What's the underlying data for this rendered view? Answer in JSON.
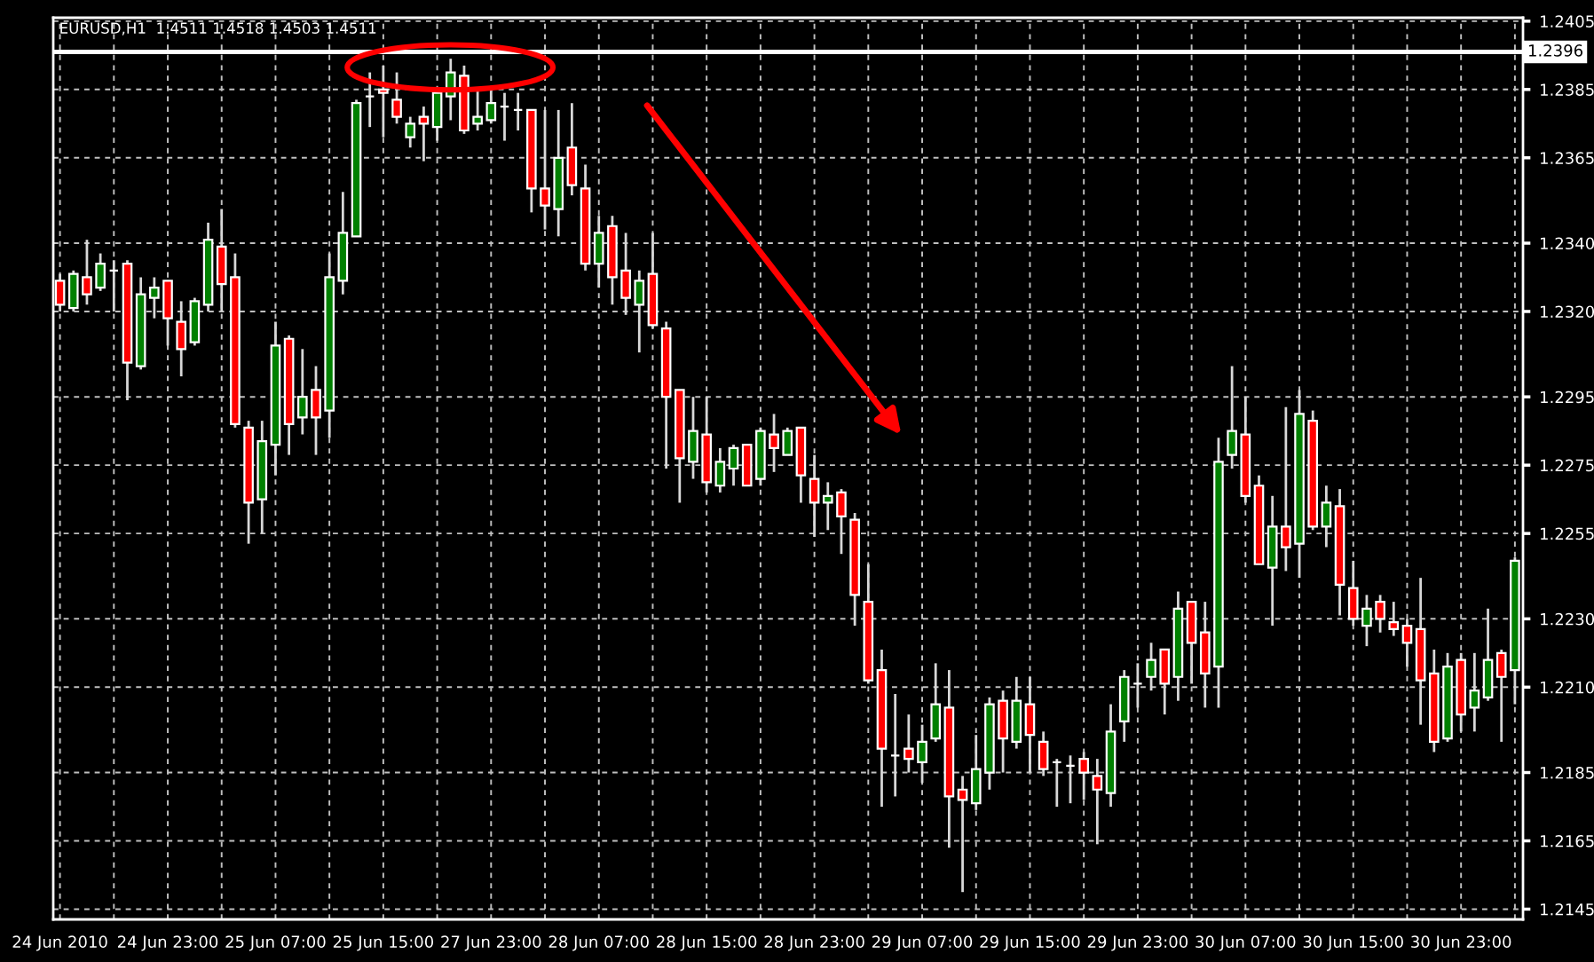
{
  "chart_data": {
    "type": "candlestick",
    "title": "EURUSD,H1  1.4511 1.4518 1.4503 1.4511",
    "categories": [
      "24 Jun 2010",
      null,
      null,
      null,
      null,
      null,
      null,
      null,
      "24 Jun 23:00",
      null,
      null,
      null,
      null,
      null,
      null,
      null,
      "25 Jun 07:00",
      null,
      null,
      null,
      null,
      null,
      null,
      null,
      "25 Jun 15:00",
      null,
      null,
      null,
      null,
      null,
      null,
      null,
      "27 Jun 23:00",
      null,
      null,
      null,
      null,
      null,
      null,
      null,
      "28 Jun 07:00",
      null,
      null,
      null,
      null,
      null,
      null,
      null,
      "28 Jun 15:00",
      null,
      null,
      null,
      null,
      null,
      null,
      null,
      "28 Jun 23:00",
      null,
      null,
      null,
      null,
      null,
      null,
      null,
      "29 Jun 07:00",
      null,
      null,
      null,
      null,
      null,
      null,
      null,
      "29 Jun 15:00",
      null,
      null,
      null,
      null,
      null,
      null,
      null,
      "29 Jun 23:00",
      null,
      null,
      null,
      null,
      null,
      null,
      null,
      "30 Jun 07:00",
      null,
      null,
      null,
      null,
      null,
      null,
      null,
      "30 Jun 15:00",
      null,
      null,
      null,
      null,
      null,
      null,
      null,
      "30 Jun 23:00",
      null,
      null,
      null,
      null
    ],
    "ohlc": [
      [
        1.2329,
        1.2331,
        1.232,
        1.2322
      ],
      [
        1.2321,
        1.2332,
        1.232,
        1.2331
      ],
      [
        1.233,
        1.2341,
        1.2322,
        1.2325
      ],
      [
        1.2327,
        1.2337,
        1.2326,
        1.2334
      ],
      [
        1.2332,
        1.2335,
        1.232,
        1.2332
      ],
      [
        1.2334,
        1.2335,
        1.2294,
        1.2305
      ],
      [
        1.2304,
        1.233,
        1.2303,
        1.2325
      ],
      [
        1.2324,
        1.233,
        1.2318,
        1.2327
      ],
      [
        1.2329,
        1.2329,
        1.231,
        1.2318
      ],
      [
        1.2317,
        1.2323,
        1.2301,
        1.2309
      ],
      [
        1.2311,
        1.2324,
        1.231,
        1.2323
      ],
      [
        1.2322,
        1.2346,
        1.232,
        1.2341
      ],
      [
        1.2339,
        1.235,
        1.232,
        1.2328
      ],
      [
        1.233,
        1.2337,
        1.2286,
        1.2287
      ],
      [
        1.2286,
        1.2288,
        1.2252,
        1.2264
      ],
      [
        1.2265,
        1.2288,
        1.2255,
        1.2282
      ],
      [
        1.2281,
        1.2317,
        1.2272,
        1.231
      ],
      [
        1.2312,
        1.2313,
        1.2278,
        1.2287
      ],
      [
        1.2289,
        1.2309,
        1.2284,
        1.2295
      ],
      [
        1.2297,
        1.2304,
        1.2278,
        1.2289
      ],
      [
        1.2291,
        1.2337,
        1.2283,
        1.233
      ],
      [
        1.2329,
        1.2355,
        1.2325,
        1.2343
      ],
      [
        1.2342,
        1.2382,
        1.2342,
        1.2381
      ],
      [
        1.2383,
        1.239,
        1.2374,
        1.2383
      ],
      [
        1.2385,
        1.2392,
        1.2371,
        1.2384
      ],
      [
        1.2382,
        1.239,
        1.2375,
        1.2377
      ],
      [
        1.2371,
        1.2377,
        1.2368,
        1.2375
      ],
      [
        1.2377,
        1.238,
        1.2364,
        1.2375
      ],
      [
        1.2374,
        1.2385,
        1.237,
        1.2384
      ],
      [
        1.2383,
        1.2394,
        1.2376,
        1.239
      ],
      [
        1.2389,
        1.2392,
        1.2372,
        1.2373
      ],
      [
        1.2375,
        1.2385,
        1.2373,
        1.2377
      ],
      [
        1.2376,
        1.2385,
        1.2375,
        1.2381
      ],
      [
        1.238,
        1.2384,
        1.237,
        1.238
      ],
      [
        1.2379,
        1.2384,
        1.2373,
        1.2379
      ],
      [
        1.2379,
        1.2379,
        1.2349,
        1.2356
      ],
      [
        1.2356,
        1.2379,
        1.2344,
        1.2351
      ],
      [
        1.235,
        1.2379,
        1.2342,
        1.2365
      ],
      [
        1.2368,
        1.2381,
        1.2354,
        1.2357
      ],
      [
        1.2356,
        1.2363,
        1.2332,
        1.2334
      ],
      [
        1.2334,
        1.2348,
        1.2327,
        1.2343
      ],
      [
        1.2345,
        1.2348,
        1.2322,
        1.233
      ],
      [
        1.2332,
        1.2343,
        1.2319,
        1.2324
      ],
      [
        1.2322,
        1.2332,
        1.2308,
        1.2329
      ],
      [
        1.2331,
        1.2343,
        1.2315,
        1.2316
      ],
      [
        1.2315,
        1.2317,
        1.2274,
        1.2295
      ],
      [
        1.2297,
        1.2297,
        1.2264,
        1.2277
      ],
      [
        1.2276,
        1.2295,
        1.2271,
        1.2285
      ],
      [
        1.2284,
        1.2295,
        1.2267,
        1.227
      ],
      [
        1.2269,
        1.228,
        1.2267,
        1.2276
      ],
      [
        1.2274,
        1.2281,
        1.2269,
        1.228
      ],
      [
        1.2281,
        1.2281,
        1.2269,
        1.2269
      ],
      [
        1.2271,
        1.2286,
        1.2269,
        1.2285
      ],
      [
        1.2284,
        1.229,
        1.2273,
        1.228
      ],
      [
        1.2278,
        1.2286,
        1.2278,
        1.2285
      ],
      [
        1.2286,
        1.2286,
        1.2264,
        1.2272
      ],
      [
        1.2271,
        1.2278,
        1.2254,
        1.2264
      ],
      [
        1.2264,
        1.227,
        1.2256,
        1.2266
      ],
      [
        1.2267,
        1.2268,
        1.2249,
        1.226
      ],
      [
        1.2259,
        1.2261,
        1.2228,
        1.2237
      ],
      [
        1.2235,
        1.2246,
        1.2211,
        1.2212
      ],
      [
        1.2215,
        1.2221,
        1.2175,
        1.2192
      ],
      [
        1.219,
        1.2208,
        1.2178,
        1.219
      ],
      [
        1.2192,
        1.2202,
        1.2185,
        1.2189
      ],
      [
        1.2188,
        1.2199,
        1.2182,
        1.2194
      ],
      [
        1.2195,
        1.2217,
        1.2194,
        1.2205
      ],
      [
        1.2204,
        1.2215,
        1.2163,
        1.2178
      ],
      [
        1.218,
        1.2184,
        1.215,
        1.2177
      ],
      [
        1.2176,
        1.2196,
        1.2174,
        1.2186
      ],
      [
        1.2185,
        1.2207,
        1.218,
        1.2205
      ],
      [
        1.2206,
        1.2209,
        1.2185,
        1.2195
      ],
      [
        1.2194,
        1.2213,
        1.2192,
        1.2206
      ],
      [
        1.2205,
        1.2213,
        1.2185,
        1.2196
      ],
      [
        1.2194,
        1.2197,
        1.2184,
        1.2186
      ],
      [
        1.2188,
        1.2189,
        1.2175,
        1.2188
      ],
      [
        1.2187,
        1.219,
        1.2176,
        1.2187
      ],
      [
        1.2189,
        1.2191,
        1.2177,
        1.2185
      ],
      [
        1.2184,
        1.2189,
        1.2164,
        1.218
      ],
      [
        1.2179,
        1.2205,
        1.2175,
        1.2197
      ],
      [
        1.22,
        1.2215,
        1.2194,
        1.2213
      ],
      [
        1.2211,
        1.2217,
        1.2204,
        1.2211
      ],
      [
        1.2213,
        1.2223,
        1.2209,
        1.2218
      ],
      [
        1.2221,
        1.2221,
        1.2202,
        1.2211
      ],
      [
        1.2213,
        1.2238,
        1.2206,
        1.2233
      ],
      [
        1.2235,
        1.2235,
        1.2211,
        1.2223
      ],
      [
        1.2226,
        1.2235,
        1.2204,
        1.2214
      ],
      [
        1.2216,
        1.2283,
        1.2204,
        1.2276
      ],
      [
        1.2278,
        1.2304,
        1.2274,
        1.2285
      ],
      [
        1.2284,
        1.2295,
        1.2264,
        1.2266
      ],
      [
        1.2269,
        1.2272,
        1.2246,
        1.2246
      ],
      [
        1.2245,
        1.2266,
        1.2228,
        1.2257
      ],
      [
        1.2257,
        1.2292,
        1.2244,
        1.2251
      ],
      [
        1.2252,
        1.2297,
        1.2242,
        1.229
      ],
      [
        1.2288,
        1.2291,
        1.2256,
        1.2257
      ],
      [
        1.2257,
        1.2269,
        1.2251,
        1.2264
      ],
      [
        1.2263,
        1.2268,
        1.2231,
        1.224
      ],
      [
        1.2239,
        1.2247,
        1.2228,
        1.223
      ],
      [
        1.2228,
        1.2237,
        1.2222,
        1.2233
      ],
      [
        1.2235,
        1.2237,
        1.2226,
        1.223
      ],
      [
        1.2229,
        1.2235,
        1.2225,
        1.2227
      ],
      [
        1.2228,
        1.223,
        1.2216,
        1.2223
      ],
      [
        1.2227,
        1.2242,
        1.2199,
        1.2212
      ],
      [
        1.2214,
        1.2221,
        1.2191,
        1.2194
      ],
      [
        1.2195,
        1.222,
        1.2194,
        1.2216
      ],
      [
        1.2218,
        1.222,
        1.2197,
        1.2202
      ],
      [
        1.2204,
        1.222,
        1.2197,
        1.2209
      ],
      [
        1.2207,
        1.2233,
        1.2206,
        1.2218
      ],
      [
        1.222,
        1.2221,
        1.2194,
        1.2213
      ],
      [
        1.2215,
        1.2248,
        1.2205,
        1.2247
      ]
    ],
    "ylim": [
      1.2142,
      1.2406
    ],
    "yticks": [
      1.2405,
      1.2385,
      1.2365,
      {
        "value": 1.234,
        "label": "1.2340"
      },
      {
        "value": 1.232,
        "label": "1.2320"
      },
      1.2295,
      1.2275,
      1.2255,
      {
        "value": 1.223,
        "label": "1.2230"
      },
      {
        "value": 1.221,
        "label": "1.2210"
      },
      1.2185,
      1.2165,
      1.2145
    ],
    "ref_lines": [
      {
        "axis": "y",
        "value": 1.2396,
        "label": "1.2396",
        "color": "#ffffff",
        "line_style": "solid"
      }
    ],
    "grid": true
  }
}
